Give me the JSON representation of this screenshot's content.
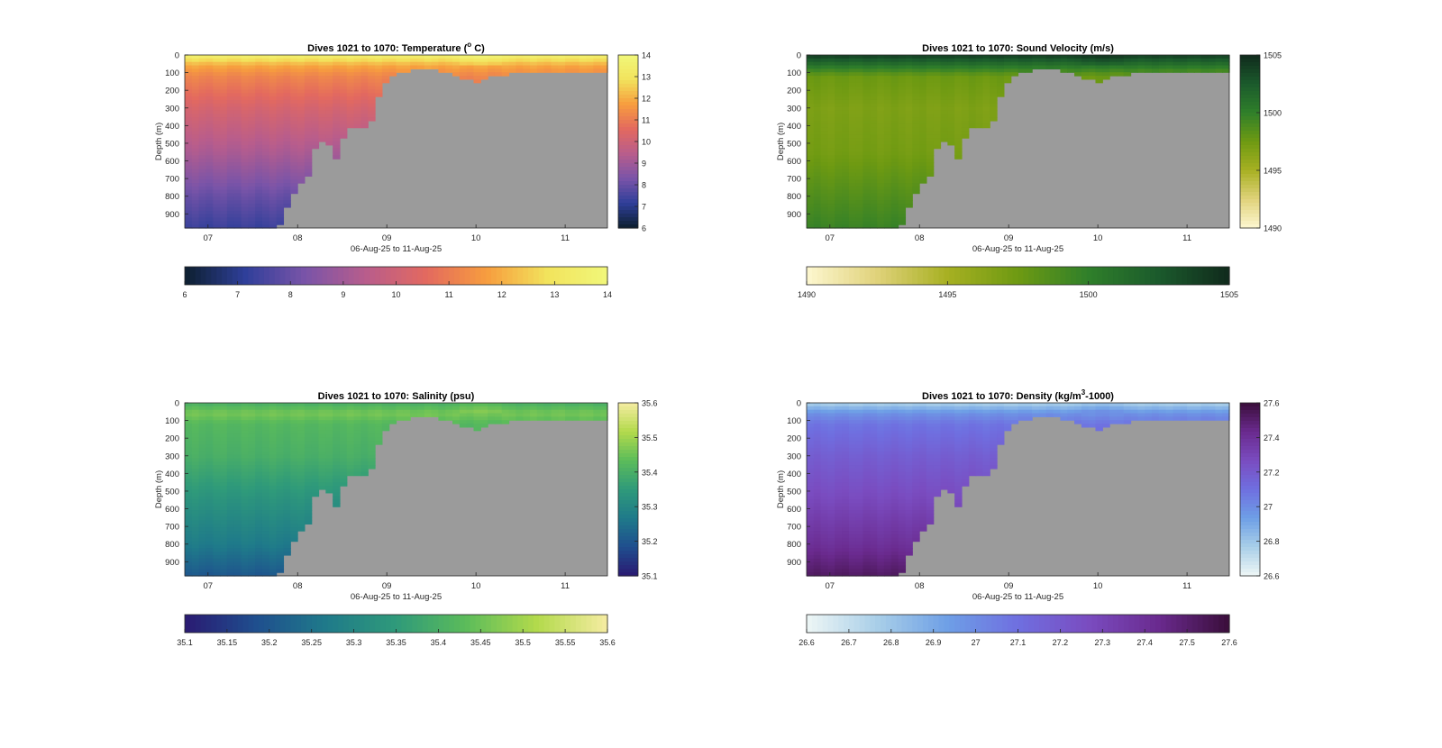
{
  "figure": {
    "background": "#ffffff",
    "fill_color": "#9b9b9b"
  },
  "chart_data": [
    {
      "type": "heatmap",
      "variable": "temperature",
      "title_main": "Dives 1021 to 1070: Temperature (",
      "title_sup": "o",
      "title_tail": " C)",
      "xlabel": "06-Aug-25 to 11-Aug-25",
      "ylabel": "Depth (m)",
      "x_ticks": [
        "07",
        "08",
        "09",
        "10",
        "11"
      ],
      "y_ticks": [
        "0",
        "100",
        "200",
        "300",
        "400",
        "500",
        "600",
        "700",
        "800",
        "900"
      ],
      "ylim": [
        0,
        980
      ],
      "y_reversed": true,
      "clim": [
        6,
        14
      ],
      "colorbar_ticks": [
        "6",
        "7",
        "8",
        "9",
        "10",
        "11",
        "12",
        "13",
        "14"
      ],
      "h_colorbar_ticks": [
        "6",
        "7",
        "8",
        "9",
        "10",
        "11",
        "12",
        "13",
        "14"
      ],
      "colormap": [
        "#0c1f2e",
        "#2f3f9a",
        "#7a54a8",
        "#b85d8c",
        "#e3695f",
        "#f79d3e",
        "#f2e35c",
        "#f1f77a"
      ],
      "surface_values": [
        13.6,
        11.9,
        11.2,
        10.2,
        9.2,
        8.0,
        7.3
      ],
      "surface_depths": [
        0,
        60,
        120,
        300,
        550,
        800,
        980
      ]
    },
    {
      "type": "heatmap",
      "variable": "sound_velocity",
      "title_main": "Dives 1021 to 1070: Sound Velocity (m/s)",
      "title_sup": "",
      "title_tail": "",
      "xlabel": "06-Aug-25 to 11-Aug-25",
      "ylabel": "Depth (m)",
      "x_ticks": [
        "07",
        "08",
        "09",
        "10",
        "11"
      ],
      "y_ticks": [
        "0",
        "100",
        "200",
        "300",
        "400",
        "500",
        "600",
        "700",
        "800",
        "900"
      ],
      "ylim": [
        0,
        980
      ],
      "y_reversed": true,
      "clim": [
        1490,
        1505
      ],
      "colorbar_ticks": [
        "1490",
        "1495",
        "1500",
        "1505"
      ],
      "h_colorbar_ticks": [
        "1490",
        "1495",
        "1500",
        "1505"
      ],
      "colormap": [
        "#fdf7d0",
        "#e0d27a",
        "#a7b022",
        "#6e9a12",
        "#2f7f2a",
        "#1b5a2c",
        "#102a1c"
      ],
      "surface_values": [
        1504.0,
        1500.8,
        1497.6,
        1496.8,
        1497.2,
        1498.6,
        1499.6
      ],
      "surface_depths": [
        0,
        60,
        120,
        300,
        550,
        800,
        980
      ]
    },
    {
      "type": "heatmap",
      "variable": "salinity",
      "title_main": "Dives 1021 to 1070: Salinity (psu)",
      "title_sup": "",
      "title_tail": "",
      "xlabel": "06-Aug-25 to 11-Aug-25",
      "ylabel": "Depth (m)",
      "x_ticks": [
        "07",
        "08",
        "09",
        "10",
        "11"
      ],
      "y_ticks": [
        "0",
        "100",
        "200",
        "300",
        "400",
        "500",
        "600",
        "700",
        "800",
        "900"
      ],
      "ylim": [
        0,
        980
      ],
      "y_reversed": true,
      "clim": [
        35.1,
        35.6
      ],
      "colorbar_ticks": [
        "35.1",
        "35.2",
        "35.3",
        "35.4",
        "35.5",
        "35.6"
      ],
      "h_colorbar_ticks": [
        "35.1",
        "35.15",
        "35.2",
        "35.25",
        "35.3",
        "35.35",
        "35.4",
        "35.45",
        "35.5",
        "35.55",
        "35.6"
      ],
      "colormap": [
        "#2a1a72",
        "#1f4e8e",
        "#1f7a8a",
        "#2f9a7a",
        "#5cbc5a",
        "#b3da4c",
        "#f5eca2"
      ],
      "surface_values": [
        35.4,
        35.46,
        35.42,
        35.4,
        35.33,
        35.27,
        35.2
      ],
      "surface_depths": [
        0,
        60,
        120,
        300,
        550,
        800,
        980
      ]
    },
    {
      "type": "heatmap",
      "variable": "density",
      "title_main": "Dives 1021 to 1070: Density (kg/m",
      "title_sup": "3",
      "title_tail": "-1000)",
      "xlabel": "06-Aug-25 to 11-Aug-25",
      "ylabel": "Depth (m)",
      "x_ticks": [
        "07",
        "08",
        "09",
        "10",
        "11"
      ],
      "y_ticks": [
        "0",
        "100",
        "200",
        "300",
        "400",
        "500",
        "600",
        "700",
        "800",
        "900"
      ],
      "ylim": [
        0,
        980
      ],
      "y_reversed": true,
      "clim": [
        26.6,
        27.6
      ],
      "colorbar_ticks": [
        "26.6",
        "26.8",
        "27",
        "27.2",
        "27.4",
        "27.6"
      ],
      "h_colorbar_ticks": [
        "26.6",
        "26.7",
        "26.8",
        "26.9",
        "27",
        "27.1",
        "27.2",
        "27.3",
        "27.4",
        "27.5",
        "27.6"
      ],
      "colormap": [
        "#eef6f6",
        "#a9cfe8",
        "#6e9fe6",
        "#6f6fe0",
        "#7a4cc0",
        "#6a2a8e",
        "#3a0e3a"
      ],
      "surface_values": [
        26.75,
        26.98,
        27.08,
        27.18,
        27.28,
        27.4,
        27.52
      ],
      "surface_depths": [
        0,
        60,
        120,
        300,
        550,
        800,
        980
      ]
    }
  ]
}
